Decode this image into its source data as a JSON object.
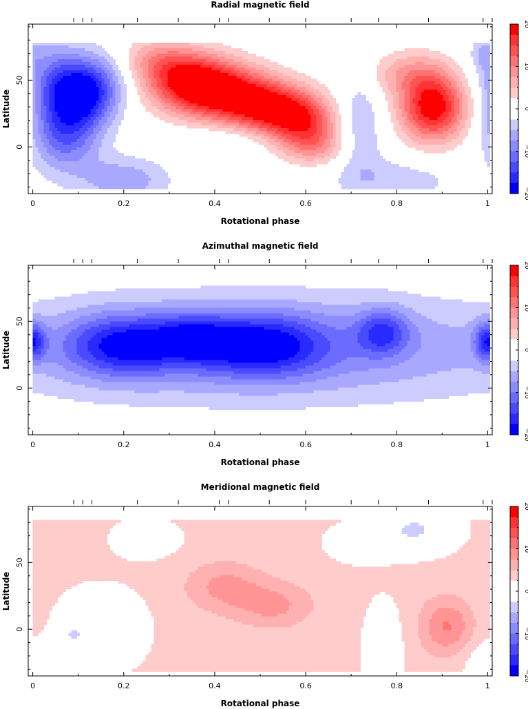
{
  "figure": {
    "xlabel": "Rotational phase",
    "ylabel": "Latitude",
    "xticks": [
      "0",
      "0.2",
      "0.4",
      "0.6",
      "0.8",
      "1"
    ],
    "yticks": [
      "0",
      "50"
    ],
    "observed_phases": [
      0.09,
      0.11,
      0.13,
      0.23,
      0.32,
      0.41,
      0.43,
      0.52,
      0.6,
      0.7,
      0.76,
      0.87,
      0.99,
      1.01
    ],
    "colorbar": {
      "ticks": [
        "20",
        "10",
        "0",
        "−10",
        "−20"
      ],
      "levels": [
        {
          "from": 17.5,
          "to": 20,
          "color": "#ff0000"
        },
        {
          "from": 15,
          "to": 17.5,
          "color": "#ff3333"
        },
        {
          "from": 12.5,
          "to": 15,
          "color": "#ff5252"
        },
        {
          "from": 10,
          "to": 12.5,
          "color": "#ff7373"
        },
        {
          "from": 7.5,
          "to": 10,
          "color": "#ff9494"
        },
        {
          "from": 5,
          "to": 7.5,
          "color": "#ffb0b0"
        },
        {
          "from": 2.5,
          "to": 5,
          "color": "#ffcccc"
        },
        {
          "from": -2.5,
          "to": 2.5,
          "color": "#ffffff"
        },
        {
          "from": -5,
          "to": -2.5,
          "color": "#ccccff"
        },
        {
          "from": -7.5,
          "to": -5,
          "color": "#a8a8ff"
        },
        {
          "from": -10,
          "to": -7.5,
          "color": "#8c8cff"
        },
        {
          "from": -12.5,
          "to": -10,
          "color": "#6b6bff"
        },
        {
          "from": -15,
          "to": -12.5,
          "color": "#4a4aff"
        },
        {
          "from": -17.5,
          "to": -15,
          "color": "#2a2aff"
        },
        {
          "from": -20,
          "to": -17.5,
          "color": "#0000ff"
        }
      ]
    }
  },
  "chart_data": [
    {
      "type": "heatmap",
      "title": "Radial magnetic field",
      "xlabel": "Rotational phase",
      "ylabel": "Latitude",
      "xlim": [
        -0.01,
        1.01
      ],
      "ylim": [
        -35,
        92
      ],
      "data_lat_range": [
        -30,
        78
      ],
      "zlim": [
        -20,
        20
      ],
      "background": 0,
      "features": [
        {
          "phase": 0.11,
          "lat": 38,
          "sphase": 0.05,
          "slat": 16,
          "amp": -17
        },
        {
          "phase": 0.08,
          "lat": 8,
          "sphase": 0.05,
          "slat": 18,
          "amp": -10
        },
        {
          "phase": 0.12,
          "lat": 55,
          "sphase": 0.08,
          "slat": 15,
          "amp": -6
        },
        {
          "phase": 0.04,
          "lat": 40,
          "sphase": 0.04,
          "slat": 30,
          "amp": -6
        },
        {
          "phase": 0.2,
          "lat": -25,
          "sphase": 0.07,
          "slat": 12,
          "amp": -7
        },
        {
          "phase": 0.35,
          "lat": 48,
          "sphase": 0.07,
          "slat": 15,
          "amp": 19
        },
        {
          "phase": 0.44,
          "lat": 38,
          "sphase": 0.07,
          "slat": 15,
          "amp": 14
        },
        {
          "phase": 0.53,
          "lat": 28,
          "sphase": 0.06,
          "slat": 14,
          "amp": 15
        },
        {
          "phase": 0.6,
          "lat": 18,
          "sphase": 0.05,
          "slat": 14,
          "amp": 12
        },
        {
          "phase": 0.27,
          "lat": 65,
          "sphase": 0.06,
          "slat": 12,
          "amp": 7
        },
        {
          "phase": 0.62,
          "lat": 0,
          "sphase": 0.05,
          "slat": 10,
          "amp": 6
        },
        {
          "phase": 0.88,
          "lat": 30,
          "sphase": 0.05,
          "slat": 18,
          "amp": 20
        },
        {
          "phase": 0.82,
          "lat": 55,
          "sphase": 0.06,
          "slat": 12,
          "amp": 6
        },
        {
          "phase": 0.72,
          "lat": 15,
          "sphase": 0.035,
          "slat": 30,
          "amp": -5
        },
        {
          "phase": 0.8,
          "lat": -25,
          "sphase": 0.1,
          "slat": 12,
          "amp": -4
        },
        {
          "phase": 0.99,
          "lat": 70,
          "sphase": 0.02,
          "slat": 8,
          "amp": -4
        },
        {
          "phase": 0.42,
          "lat": 5,
          "sphase": 0.08,
          "slat": 8,
          "amp": -3
        }
      ]
    },
    {
      "type": "heatmap",
      "title": "Azimuthal magnetic field",
      "xlabel": "Rotational phase",
      "ylabel": "Latitude",
      "xlim": [
        -0.01,
        1.01
      ],
      "ylim": [
        -35,
        92
      ],
      "data_lat_range": [
        -30,
        83
      ],
      "zlim": [
        -20,
        20
      ],
      "background": 0,
      "features": [
        {
          "phase": 0.5,
          "lat": 30,
          "sphase": 0.45,
          "slat": 28,
          "amp": -9
        },
        {
          "phase": 0.2,
          "lat": 32,
          "sphase": 0.09,
          "slat": 16,
          "amp": -13
        },
        {
          "phase": 0.5,
          "lat": 32,
          "sphase": 0.1,
          "slat": 16,
          "amp": -13
        },
        {
          "phase": 0.77,
          "lat": 42,
          "sphase": 0.04,
          "slat": 12,
          "amp": -10
        },
        {
          "phase": 0.35,
          "lat": 38,
          "sphase": 0.06,
          "slat": 12,
          "amp": -8
        },
        {
          "phase": 1.0,
          "lat": 35,
          "sphase": 0.02,
          "slat": 10,
          "amp": -12
        }
      ]
    },
    {
      "type": "heatmap",
      "title": "Meridional magnetic field",
      "xlabel": "Rotational phase",
      "ylabel": "Latitude",
      "xlim": [
        -0.01,
        1.01
      ],
      "ylim": [
        -35,
        92
      ],
      "data_lat_range": [
        -30,
        82
      ],
      "zlim": [
        -20,
        20
      ],
      "background": 3.2,
      "features": [
        {
          "phase": 0.15,
          "lat": 0,
          "sphase": 0.07,
          "slat": 22,
          "amp": -3
        },
        {
          "phase": 0.09,
          "lat": -3,
          "sphase": 0.012,
          "slat": 4,
          "amp": -5
        },
        {
          "phase": 0.77,
          "lat": -15,
          "sphase": 0.03,
          "slat": 25,
          "amp": -3
        },
        {
          "phase": 0.84,
          "lat": 75,
          "sphase": 0.06,
          "slat": 12,
          "amp": -6
        },
        {
          "phase": 0.72,
          "lat": 65,
          "sphase": 0.05,
          "slat": 10,
          "amp": -3
        },
        {
          "phase": 0.25,
          "lat": 68,
          "sphase": 0.05,
          "slat": 10,
          "amp": -3
        },
        {
          "phase": 1.0,
          "lat": -25,
          "sphase": 0.04,
          "slat": 12,
          "amp": -3
        },
        {
          "phase": 0.42,
          "lat": 32,
          "sphase": 0.06,
          "slat": 13,
          "amp": 5
        },
        {
          "phase": 0.53,
          "lat": 18,
          "sphase": 0.06,
          "slat": 12,
          "amp": 5
        },
        {
          "phase": 0.91,
          "lat": 2,
          "sphase": 0.04,
          "slat": 15,
          "amp": 7
        }
      ]
    }
  ]
}
